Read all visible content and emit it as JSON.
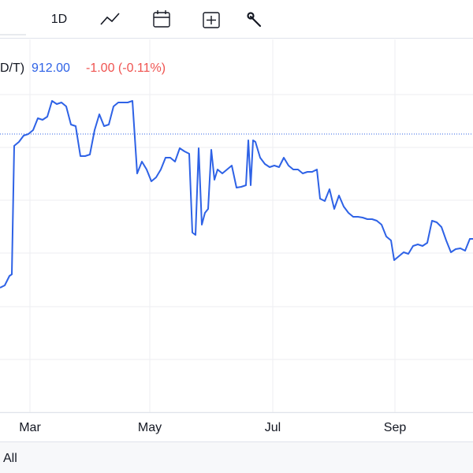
{
  "toolbar": {
    "interval": "1D"
  },
  "legend": {
    "symbol": "D/T)",
    "price": "912.00",
    "change": "-1.00 (-0.11%)"
  },
  "range_bar": {
    "button": "All"
  },
  "chart_data": {
    "type": "line",
    "color": "#2e62e6",
    "x": [
      0,
      6,
      12,
      15,
      18,
      24,
      30,
      36,
      42,
      48,
      54,
      60,
      66,
      72,
      78,
      84,
      90,
      96,
      102,
      108,
      114,
      120,
      126,
      132,
      138,
      144,
      150,
      156,
      162,
      168,
      174,
      180,
      186,
      192,
      198,
      204,
      210,
      216,
      222,
      228,
      234,
      240,
      244,
      248,
      252,
      256,
      260,
      264,
      268,
      272,
      276,
      282,
      288,
      294,
      300,
      306,
      312,
      315,
      318,
      321,
      324,
      330,
      336,
      342,
      348,
      354,
      360,
      366,
      372,
      378,
      384,
      390,
      396,
      402,
      406,
      412,
      418,
      424,
      430,
      436,
      442,
      448,
      454,
      460,
      466,
      472,
      478,
      484,
      490,
      496,
      500,
      506,
      512,
      518,
      524,
      530,
      536,
      542,
      548,
      554,
      560,
      566,
      572,
      578,
      584,
      590,
      596,
      600
    ],
    "values": [
      158,
      161,
      173,
      175,
      338,
      343,
      351,
      353,
      358,
      373,
      371,
      375,
      395,
      391,
      393,
      388,
      365,
      363,
      325,
      325,
      327,
      358,
      378,
      363,
      365,
      388,
      393,
      393,
      393,
      395,
      303,
      318,
      308,
      293,
      298,
      308,
      323,
      323,
      318,
      335,
      331,
      328,
      228,
      225,
      335,
      238,
      253,
      258,
      333,
      295,
      308,
      303,
      308,
      313,
      285,
      286,
      288,
      345,
      288,
      345,
      343,
      323,
      315,
      311,
      313,
      311,
      323,
      313,
      308,
      308,
      303,
      305,
      305,
      308,
      271,
      268,
      283,
      258,
      275,
      261,
      253,
      248,
      248,
      247,
      245,
      245,
      243,
      238,
      223,
      218,
      193,
      198,
      203,
      201,
      211,
      213,
      211,
      215,
      243,
      241,
      235,
      218,
      203,
      207,
      208,
      205,
      220,
      220
    ],
    "xlim": [
      0,
      600
    ],
    "ylim": [
      0,
      473
    ],
    "xticks": [
      {
        "value": 38,
        "label": "Mar"
      },
      {
        "value": 190,
        "label": "May"
      },
      {
        "value": 346,
        "label": "Jul"
      },
      {
        "value": 501,
        "label": "Sep"
      }
    ],
    "ygrid": [
      403,
      336,
      269,
      202,
      134,
      67,
      0
    ],
    "reference_line": 353,
    "reference_color": "#2e62e6",
    "grid": true
  }
}
